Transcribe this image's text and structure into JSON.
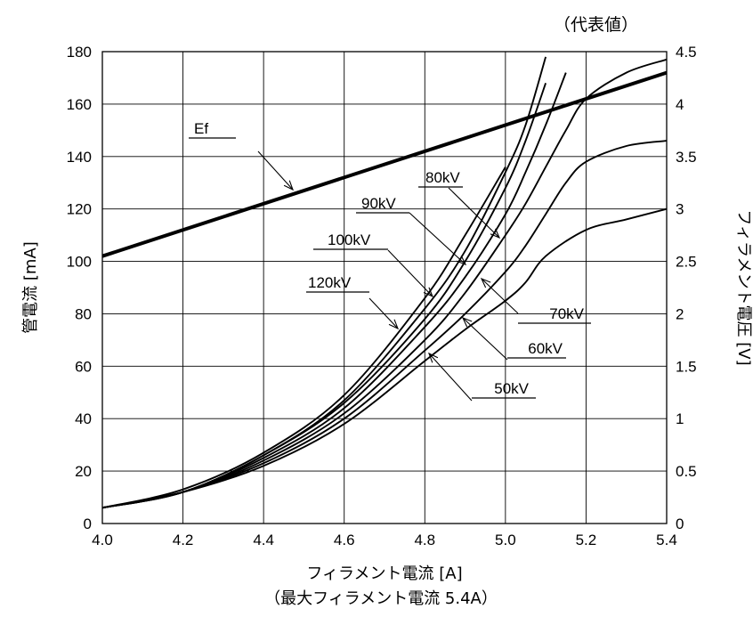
{
  "chart_data": {
    "type": "line",
    "note": "（代表値）",
    "xlabel": "フィラメント電流 [A]",
    "xlabel_sub": "（最大フィラメント電流 5.4A）",
    "ylabel": "管電流 [mA]",
    "y2label": "フィラメント電圧 [V]",
    "xlim": [
      4.0,
      5.4
    ],
    "ylim": [
      0,
      180
    ],
    "y2lim": [
      0,
      4.5
    ],
    "grid": true,
    "x_ticks": [
      "4.0",
      "4.2",
      "4.4",
      "4.6",
      "4.8",
      "5.0",
      "5.2",
      "5.4"
    ],
    "y_ticks": [
      "0",
      "20",
      "40",
      "60",
      "80",
      "100",
      "120",
      "140",
      "160",
      "180"
    ],
    "y2_ticks": [
      "0",
      "0.5",
      "1",
      "1.5",
      "2",
      "2.5",
      "3",
      "3.5",
      "4",
      "4.5"
    ],
    "series": [
      {
        "name": "Ef",
        "axis": "right",
        "x": [
          4.0,
          5.4
        ],
        "y": [
          2.55,
          4.3
        ]
      },
      {
        "name": "50kV",
        "axis": "left",
        "x": [
          4.0,
          4.2,
          4.4,
          4.6,
          4.8,
          4.9,
          5.0,
          5.05,
          5.1,
          5.2,
          5.3,
          5.4
        ],
        "y": [
          6,
          12,
          22,
          38,
          62,
          74,
          85,
          92,
          102,
          112,
          116,
          120
        ]
      },
      {
        "name": "60kV",
        "axis": "left",
        "x": [
          4.0,
          4.2,
          4.4,
          4.6,
          4.8,
          4.9,
          5.0,
          5.05,
          5.1,
          5.15,
          5.2,
          5.3,
          5.4
        ],
        "y": [
          6,
          12,
          23,
          40,
          66,
          80,
          96,
          106,
          118,
          130,
          138,
          144,
          146
        ]
      },
      {
        "name": "70kV",
        "axis": "left",
        "x": [
          4.0,
          4.2,
          4.4,
          4.6,
          4.8,
          4.9,
          5.0,
          5.05,
          5.1,
          5.15,
          5.2,
          5.3,
          5.4
        ],
        "y": [
          6,
          12,
          24,
          42,
          70,
          88,
          110,
          122,
          136,
          150,
          162,
          172,
          177
        ]
      },
      {
        "name": "80kV",
        "axis": "left",
        "x": [
          4.0,
          4.2,
          4.4,
          4.6,
          4.8,
          4.9,
          5.0,
          5.05,
          5.1,
          5.15
        ],
        "y": [
          6,
          12,
          25,
          44,
          75,
          94,
          118,
          134,
          152,
          172
        ]
      },
      {
        "name": "90kV",
        "axis": "left",
        "x": [
          4.0,
          4.2,
          4.4,
          4.6,
          4.8,
          4.9,
          5.0,
          5.05,
          5.1
        ],
        "y": [
          6,
          12,
          26,
          46,
          78,
          100,
          128,
          146,
          168
        ]
      },
      {
        "name": "100kV",
        "axis": "left",
        "x": [
          4.0,
          4.2,
          4.4,
          4.6,
          4.8,
          4.9,
          5.0,
          5.05,
          5.1
        ],
        "y": [
          6,
          12,
          26,
          47,
          82,
          104,
          134,
          152,
          178
        ]
      },
      {
        "name": "120kV",
        "axis": "left",
        "x": [
          4.0,
          4.2,
          4.4,
          4.6,
          4.8,
          4.9,
          5.0
        ],
        "y": [
          6,
          13,
          27,
          49,
          86,
          110,
          136
        ]
      }
    ]
  }
}
